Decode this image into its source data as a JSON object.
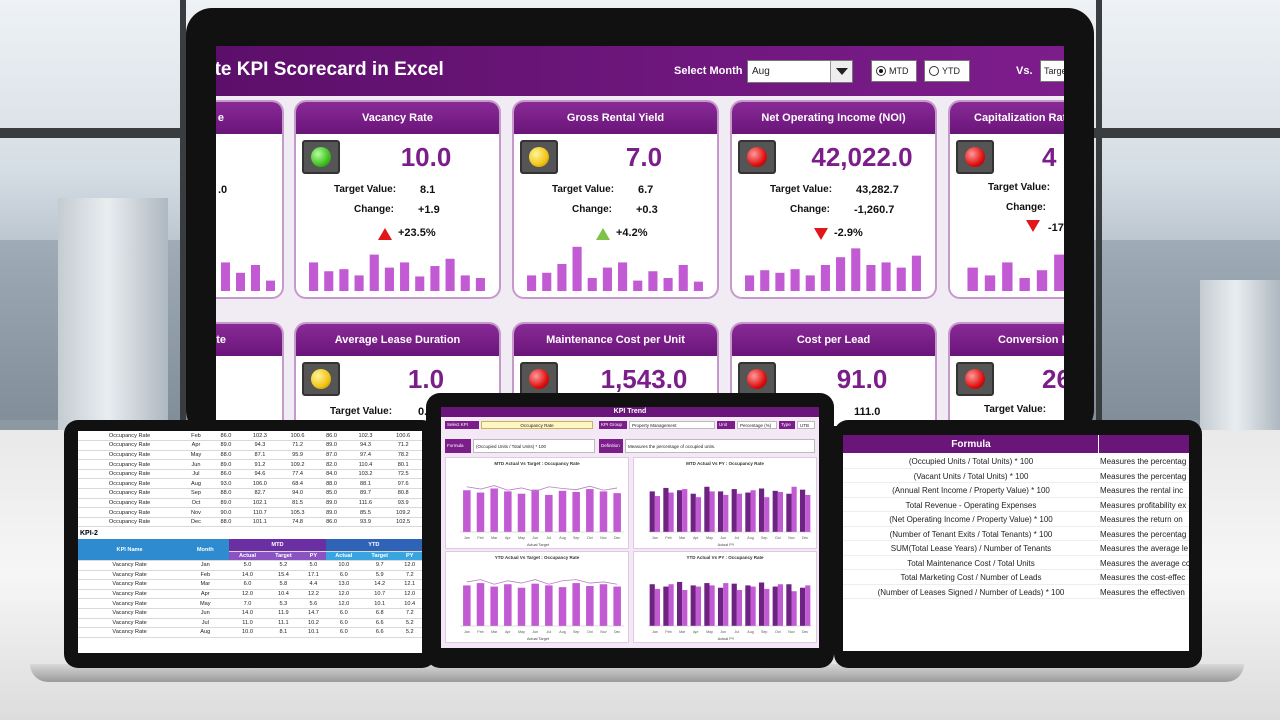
{
  "dashboard": {
    "title": "ate KPI Scorecard in Excel",
    "select_month_label": "Select Month",
    "month_value": "Aug",
    "mtd_label": "MTD",
    "ytd_label": "YTD",
    "vs_label": "Vs.",
    "vs_value": "Targe",
    "top_cards": [
      {
        "title": "Vacancy Rate",
        "light": "green",
        "value": "10.0",
        "target_label": "Target Value:",
        "target": "8.1",
        "change_label": "Change:",
        "change": "+1.9",
        "trend": "up",
        "trend_color": "#e0161a",
        "pct": "+23.5%",
        "bars": [
          0.55,
          0.38,
          0.42,
          0.3,
          0.7,
          0.45,
          0.55,
          0.28,
          0.48,
          0.62,
          0.3,
          0.25
        ]
      },
      {
        "title": "Gross Rental Yield",
        "light": "yellow",
        "value": "7.0",
        "target_label": "Target Value:",
        "target": "6.7",
        "change_label": "Change:",
        "change": "+0.3",
        "trend": "up",
        "trend_color": "#7fc24a",
        "pct": "+4.2%",
        "bars": [
          0.3,
          0.35,
          0.52,
          0.85,
          0.25,
          0.45,
          0.55,
          0.2,
          0.38,
          0.25,
          0.5,
          0.18
        ]
      },
      {
        "title": "Net Operating Income (NOI)",
        "light": "red",
        "value": "42,022.0",
        "target_label": "Target Value:",
        "target": "43,282.7",
        "change_label": "Change:",
        "change": "-1,260.7",
        "trend": "down",
        "trend_color": "#e0161a",
        "pct": "-2.9%",
        "bars": [
          0.3,
          0.4,
          0.35,
          0.42,
          0.3,
          0.5,
          0.65,
          0.82,
          0.5,
          0.55,
          0.45,
          0.68
        ]
      }
    ],
    "left_partial_top": {
      "title": "e",
      "value": ".0"
    },
    "right_partial_top": {
      "title": "Capitalization Rate",
      "value": "4",
      "target_label": "Target Value:",
      "change_label": "Change:",
      "change": "-17",
      "bars": [
        0.45,
        0.3,
        0.55,
        0.25,
        0.4,
        0.7
      ]
    },
    "bottom_cards": [
      {
        "title": "Average Lease Duration",
        "light": "yellow",
        "value": "1.0",
        "target_label": "Target Value:",
        "target": "0."
      },
      {
        "title": "Maintenance Cost per Unit",
        "light": "red",
        "value": "1,543.0",
        "target_label": "",
        "target": ""
      },
      {
        "title": "Cost per Lead",
        "light": "red",
        "value": "91.0",
        "target_label": "",
        "target": "111.0"
      }
    ],
    "left_partial_bottom": {
      "title": "te"
    },
    "right_partial_bottom": {
      "title": "Conversion Ra",
      "value": "26",
      "target_label": "Target Value:"
    }
  },
  "left_tablet": {
    "rows_top": [
      [
        "Occupancy Rate",
        "Feb",
        "86.0",
        "102.3",
        "100.6",
        "86.0",
        "102.3",
        "100.6"
      ],
      [
        "Occupancy Rate",
        "Apr",
        "89.0",
        "94.3",
        "71.2",
        "89.0",
        "94.3",
        "71.2"
      ],
      [
        "Occupancy Rate",
        "May",
        "88.0",
        "87.1",
        "95.9",
        "87.0",
        "97.4",
        "78.2"
      ],
      [
        "Occupancy Rate",
        "Jun",
        "89.0",
        "91.2",
        "109.2",
        "82.0",
        "110.4",
        "80.1"
      ],
      [
        "Occupancy Rate",
        "Jul",
        "86.0",
        "94.6",
        "77.4",
        "84.0",
        "103.2",
        "72.5"
      ],
      [
        "Occupancy Rate",
        "Aug",
        "93.0",
        "106.0",
        "68.4",
        "88.0",
        "88.1",
        "97.6"
      ],
      [
        "Occupancy Rate",
        "Sep",
        "88.0",
        "82.7",
        "94.0",
        "85.0",
        "89.7",
        "80.8"
      ],
      [
        "Occupancy Rate",
        "Oct",
        "89.0",
        "102.1",
        "81.5",
        "89.0",
        "111.6",
        "93.9"
      ],
      [
        "Occupancy Rate",
        "Nov",
        "90.0",
        "110.7",
        "105.3",
        "89.0",
        "85.5",
        "109.2"
      ],
      [
        "Occupancy Rate",
        "Dec",
        "88.0",
        "101.1",
        "74.8",
        "86.0",
        "93.9",
        "102.5"
      ]
    ],
    "kpi_label": "KPI-2",
    "headers": {
      "kpi_name": "KPI Name",
      "month": "Month",
      "mtd": "MTD",
      "ytd": "YTD",
      "actual": "Actual",
      "target": "Target",
      "py": "PY"
    },
    "rows_bottom": [
      [
        "Vacancy Rate",
        "Jan",
        "5.0",
        "5.2",
        "5.0",
        "10.0",
        "9.7",
        "12.0"
      ],
      [
        "Vacancy Rate",
        "Feb",
        "14.0",
        "15.4",
        "17.1",
        "6.0",
        "5.9",
        "7.2"
      ],
      [
        "Vacancy Rate",
        "Mar",
        "6.0",
        "5.8",
        "4.4",
        "13.0",
        "14.2",
        "12.1"
      ],
      [
        "Vacancy Rate",
        "Apr",
        "12.0",
        "10.4",
        "12.2",
        "12.0",
        "10.7",
        "12.0"
      ],
      [
        "Vacancy Rate",
        "May",
        "7.0",
        "5.3",
        "5.6",
        "12.0",
        "10.1",
        "10.4"
      ],
      [
        "Vacancy Rate",
        "Jun",
        "14.0",
        "11.9",
        "14.7",
        "6.0",
        "6.8",
        "7.2"
      ],
      [
        "Vacancy Rate",
        "Jul",
        "11.0",
        "11.1",
        "10.2",
        "6.0",
        "6.6",
        "5.2"
      ],
      [
        "Vacancy Rate",
        "Aug",
        "10.0",
        "8.1",
        "10.1",
        "6.0",
        "6.6",
        "5.2"
      ]
    ]
  },
  "center_tablet": {
    "title": "KPI Trend",
    "select_kpi_label": "Select KPI",
    "select_kpi_value": "Occupancy Rate",
    "kpi_group_label": "KPI Group",
    "kpi_group_value": "Property Management",
    "unit_label": "Unit",
    "unit_value": "Percentage (%)",
    "type_label": "Type",
    "type_value": "UTB",
    "formula_label": "Formula",
    "formula_value": "(Occupied Units / Total Units) * 100",
    "definition_label": "Definition",
    "definition_value": "Measures the percentage of occupied units.",
    "charts": [
      {
        "title": "MTD Actual Vs Target : Occupancy Rate",
        "kind": "bar-line",
        "legend": "Actual    Target",
        "values": [
          0.72,
          0.68,
          0.75,
          0.7,
          0.66,
          0.73,
          0.64,
          0.71,
          0.69,
          0.74,
          0.7,
          0.67
        ],
        "line": [
          0.78,
          0.74,
          0.8,
          0.72,
          0.76,
          0.7,
          0.78,
          0.75,
          0.73,
          0.79,
          0.72,
          0.76
        ]
      },
      {
        "title": "MTD Actual Vs PY : Occupancy Rate",
        "kind": "paired",
        "legend": "Actual    PY",
        "values": [
          0.7,
          0.76,
          0.72,
          0.66,
          0.78,
          0.7,
          0.74,
          0.68,
          0.75,
          0.71,
          0.66,
          0.73
        ],
        "values2": [
          0.62,
          0.68,
          0.74,
          0.6,
          0.7,
          0.64,
          0.66,
          0.72,
          0.6,
          0.69,
          0.78,
          0.64
        ]
      },
      {
        "title": "YTD Actual Vs Target : Occupancy Rate",
        "kind": "bar-line",
        "legend": "Actual    Target",
        "values": [
          0.7,
          0.74,
          0.68,
          0.72,
          0.66,
          0.73,
          0.7,
          0.67,
          0.74,
          0.69,
          0.72,
          0.68
        ],
        "line": [
          0.76,
          0.8,
          0.72,
          0.78,
          0.74,
          0.8,
          0.72,
          0.78,
          0.8,
          0.74,
          0.76,
          0.72
        ]
      },
      {
        "title": "YTD Actual Vs PY : Occupancy Rate",
        "kind": "paired",
        "legend": "Actual    PY",
        "values": [
          0.72,
          0.68,
          0.76,
          0.7,
          0.74,
          0.66,
          0.73,
          0.7,
          0.75,
          0.68,
          0.72,
          0.66
        ],
        "values2": [
          0.64,
          0.72,
          0.62,
          0.68,
          0.7,
          0.74,
          0.62,
          0.68,
          0.64,
          0.72,
          0.6,
          0.7
        ]
      }
    ],
    "months": [
      "Jan",
      "Feb",
      "Mar",
      "Apr",
      "May",
      "Jun",
      "Jul",
      "Aug",
      "Sep",
      "Oct",
      "Nov",
      "Dec"
    ]
  },
  "right_tablet": {
    "header_formula": "Formula",
    "rows": [
      {
        "formula": "(Occupied Units / Total Units) * 100",
        "desc": "Measures the percentag"
      },
      {
        "formula": "(Vacant Units / Total Units) * 100",
        "desc": "Measures the percentag"
      },
      {
        "formula": "(Annual Rent Income / Property Value) * 100",
        "desc": "Measures the rental inc"
      },
      {
        "formula": "Total Revenue - Operating Expenses",
        "desc": "Measures profitability ex"
      },
      {
        "formula": "(Net Operating Income / Property Value) * 100",
        "desc": "Measures the return on"
      },
      {
        "formula": "(Number of Tenant Exits / Total Tenants) * 100",
        "desc": "Measures the percentag"
      },
      {
        "formula": "SUM(Total Lease Years) / Number of Tenants",
        "desc": "Measures the average le"
      },
      {
        "formula": "Total Maintenance Cost / Total Units",
        "desc": "Measures the average co"
      },
      {
        "formula": "Total Marketing Cost / Number of Leads",
        "desc": "Measures the cost-effec"
      },
      {
        "formula": "(Number of Leases Signed / Number of Leads) * 100",
        "desc": "Measures the effectiven"
      }
    ]
  },
  "colors": {
    "brand_purple": "#6a1579",
    "bar_purple": "#c25bd3",
    "dark_bar": "#6e2282"
  }
}
